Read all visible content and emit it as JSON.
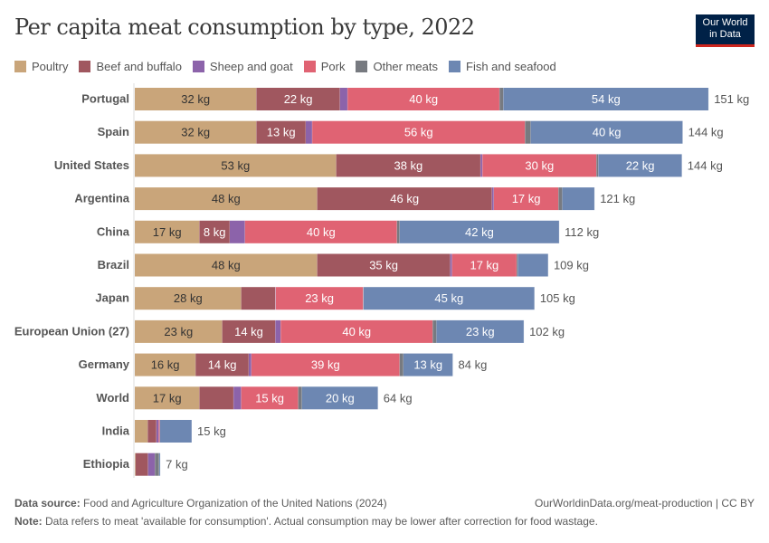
{
  "title": "Per capita meat consumption by type, 2022",
  "logo": {
    "line1": "Our World",
    "line2": "in Data"
  },
  "footer": {
    "source_label": "Data source:",
    "source": "Food and Agriculture Organization of the United Nations (2024)",
    "url": "OurWorldinData.org/meat-production | CC BY",
    "note_label": "Note:",
    "note": "Data refers to meat 'available for consumption'. Actual consumption may be lower after correction for food wastage."
  },
  "chart_data": {
    "type": "bar",
    "orientation": "horizontal",
    "stacked": true,
    "unit": "kg",
    "title": "Per capita meat consumption by type, 2022",
    "legend_position": "top",
    "grid": false,
    "series": [
      {
        "name": "Poultry",
        "color": "#C9A57A"
      },
      {
        "name": "Beef and buffalo",
        "color": "#A0575F"
      },
      {
        "name": "Sheep and goat",
        "color": "#8C63AA"
      },
      {
        "name": "Pork",
        "color": "#E06373"
      },
      {
        "name": "Other meats",
        "color": "#777A80"
      },
      {
        "name": "Fish and seafood",
        "color": "#6D87B2"
      }
    ],
    "categories": [
      "Portugal",
      "Spain",
      "United States",
      "Argentina",
      "China",
      "Brazil",
      "Japan",
      "European Union (27)",
      "Germany",
      "World",
      "India",
      "Ethiopia"
    ],
    "values": [
      [
        32,
        22,
        2,
        40,
        1,
        54
      ],
      [
        32,
        13,
        1.7,
        56,
        1.5,
        40
      ],
      [
        53,
        38,
        0.5,
        30,
        0.5,
        22
      ],
      [
        48,
        46,
        0.5,
        17,
        1,
        8.5
      ],
      [
        17,
        8,
        4,
        40,
        0.7,
        42
      ],
      [
        48,
        35,
        0.5,
        17,
        0.3,
        8
      ],
      [
        28,
        9,
        0.1,
        23,
        0.1,
        45
      ],
      [
        23,
        14,
        1.4,
        40,
        1,
        23
      ],
      [
        16,
        14,
        0.7,
        39,
        1,
        13
      ],
      [
        17,
        9,
        2,
        15,
        1,
        20
      ],
      [
        3.4,
        2.3,
        0.6,
        0.3,
        0,
        8.4
      ],
      [
        0.2,
        3.3,
        1.8,
        0,
        1.1,
        0.3
      ]
    ],
    "segment_labels": [
      [
        "32 kg",
        "22 kg",
        "",
        "40 kg",
        "",
        "54 kg"
      ],
      [
        "32 kg",
        "13 kg",
        "",
        "56 kg",
        "",
        "40 kg"
      ],
      [
        "53 kg",
        "38 kg",
        "",
        "30 kg",
        "",
        "22 kg"
      ],
      [
        "48 kg",
        "46 kg",
        "",
        "17 kg",
        "",
        ""
      ],
      [
        "17 kg",
        "8 kg",
        "",
        "40 kg",
        "",
        "42 kg"
      ],
      [
        "48 kg",
        "35 kg",
        "",
        "17 kg",
        "",
        ""
      ],
      [
        "28 kg",
        "",
        "",
        "23 kg",
        "",
        "45 kg"
      ],
      [
        "23 kg",
        "14 kg",
        "",
        "40 kg",
        "",
        "23 kg"
      ],
      [
        "16 kg",
        "14 kg",
        "",
        "39 kg",
        "",
        "13 kg"
      ],
      [
        "17 kg",
        "",
        "",
        "15 kg",
        "",
        "20 kg"
      ],
      [
        "",
        "",
        "",
        "",
        "",
        ""
      ],
      [
        "",
        "",
        "",
        "",
        "",
        ""
      ]
    ],
    "totals": [
      "151 kg",
      "144 kg",
      "144 kg",
      "121 kg",
      "112 kg",
      "109 kg",
      "105 kg",
      "102 kg",
      "84 kg",
      "64 kg",
      "15 kg",
      "7 kg"
    ]
  }
}
